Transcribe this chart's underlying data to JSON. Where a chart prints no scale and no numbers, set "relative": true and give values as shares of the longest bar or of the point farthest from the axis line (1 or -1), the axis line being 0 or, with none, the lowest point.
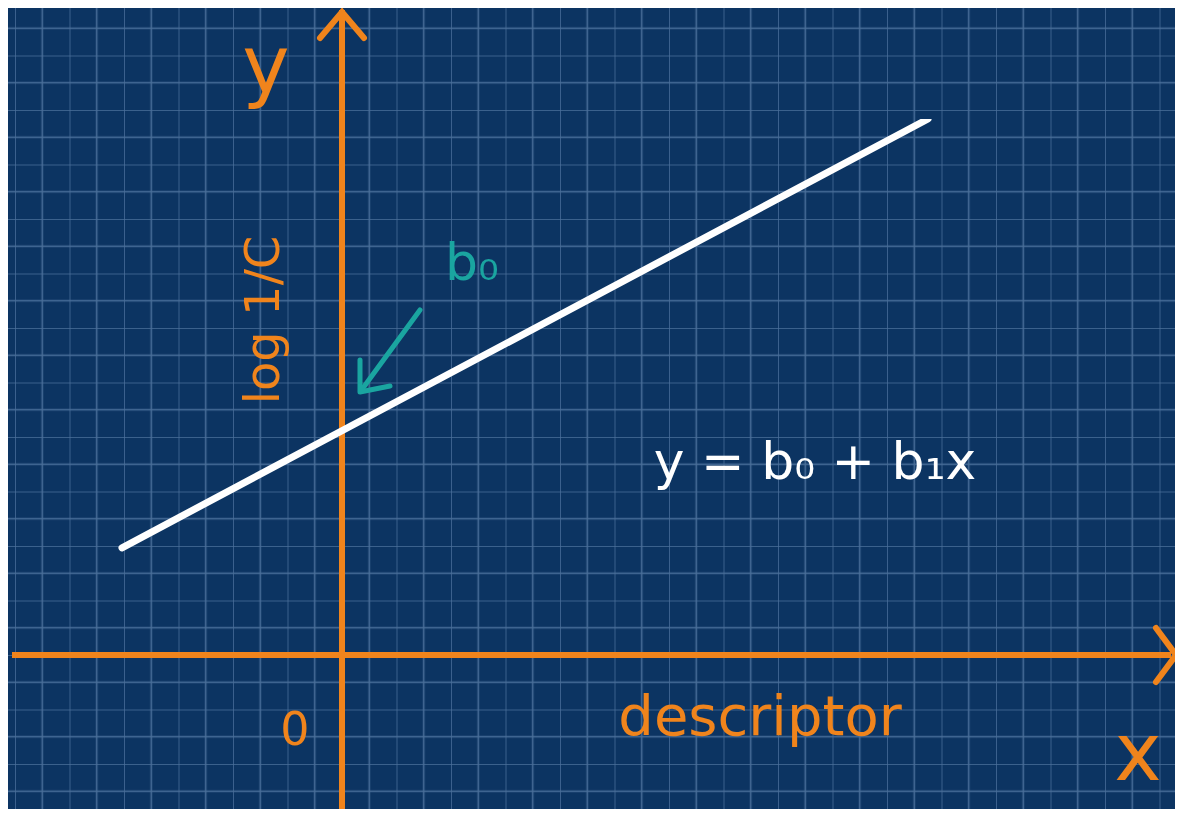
{
  "chart_data": {
    "type": "line",
    "relative": true,
    "categories": [
      null,
      null
    ],
    "series": [
      {
        "color": "#ffffff",
        "values": [
          0.2,
          1
        ]
      }
    ],
    "xlabel": "descriptor",
    "ylabel": "log 1/C",
    "annotations": [
      "y",
      "x",
      "0",
      "b₀",
      "y = b₀ + b₁x"
    ],
    "marker": "none",
    "line_style": "solid"
  }
}
